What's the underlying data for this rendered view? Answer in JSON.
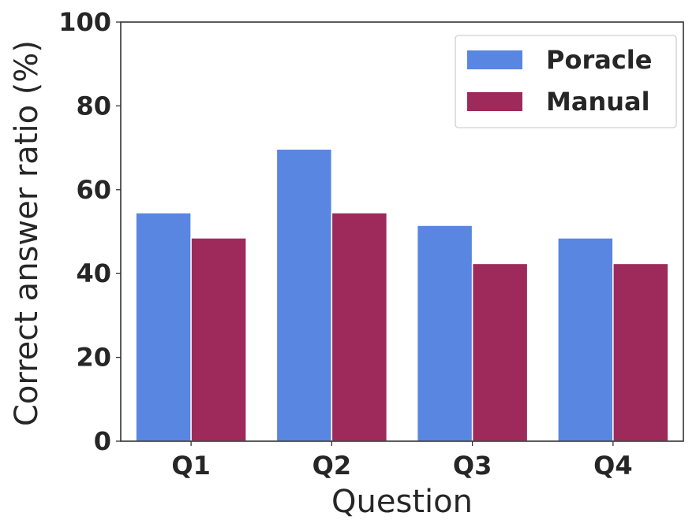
{
  "chart_data": {
    "type": "bar",
    "categories": [
      "Q1",
      "Q2",
      "Q3",
      "Q4"
    ],
    "series": [
      {
        "name": "Poracle",
        "values": [
          54.5,
          69.7,
          51.5,
          48.5
        ],
        "color": "#5986e0"
      },
      {
        "name": "Manual",
        "values": [
          48.5,
          54.5,
          42.4,
          42.4
        ],
        "color": "#9e2a5c"
      }
    ],
    "xlabel": "Question",
    "ylabel": "Correct answer ratio (%)",
    "ylim": [
      0,
      100
    ],
    "yticks": [
      "0",
      "20",
      "40",
      "60",
      "80",
      "100"
    ],
    "grid": false,
    "legend": "top-right"
  }
}
